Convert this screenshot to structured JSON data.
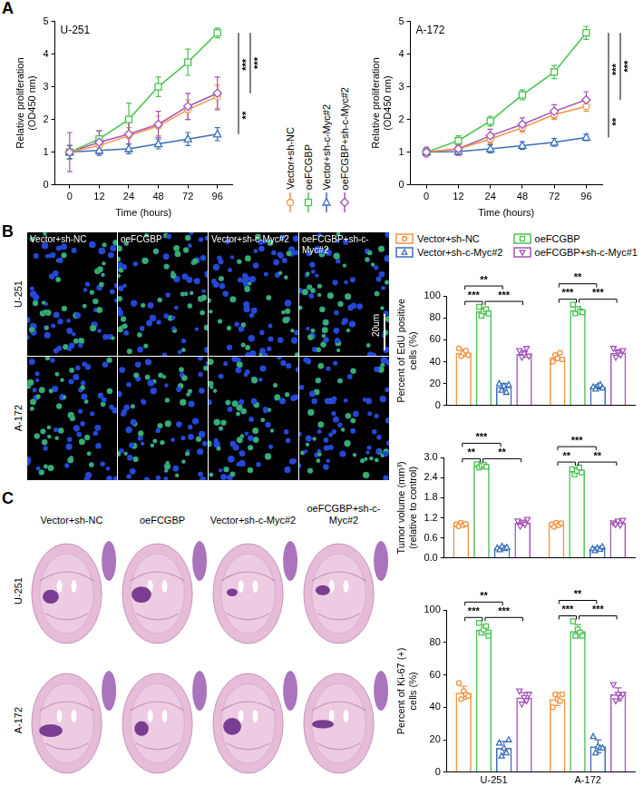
{
  "chart_data": [
    {
      "type": "line",
      "letter": "A",
      "title": "U-251",
      "x_label": "Time (hours)",
      "y_label": [
        "Relative proliferation",
        "(OD450 nm)"
      ],
      "categories": [
        "0",
        "12",
        "24",
        "48",
        "72",
        "96"
      ],
      "ylim": [
        0,
        5
      ],
      "yticks": [
        0,
        1,
        2,
        3,
        4,
        5
      ],
      "grid": false,
      "legend": "right",
      "series": [
        {
          "name": "Vector+sh-NC",
          "color": "#f5923e",
          "marker": "circle",
          "values": [
            1,
            1.2,
            1.5,
            1.8,
            2.3,
            2.7
          ],
          "errors": [
            0.2,
            0.25,
            0.25,
            0.3,
            0.3,
            0.35
          ]
        },
        {
          "name": "oeFCGBP",
          "color": "#49c24f",
          "marker": "square",
          "values": [
            1,
            1.4,
            2.0,
            3.0,
            3.75,
            4.65
          ],
          "errors": [
            0.2,
            0.25,
            0.5,
            0.3,
            0.4,
            0.15
          ]
        },
        {
          "name": "Vector+sh-c-Myc#2",
          "color": "#3a6fb7",
          "marker": "triangle",
          "values": [
            1,
            1.05,
            1.1,
            1.25,
            1.4,
            1.55
          ],
          "errors": [
            0.2,
            0.15,
            0.15,
            0.15,
            0.2,
            0.2
          ]
        },
        {
          "name": "oeFCGBP+sh-c-Myc#2",
          "color": "#a354b8",
          "marker": "diamond",
          "values": [
            1,
            1.3,
            1.55,
            1.85,
            2.4,
            2.8
          ],
          "errors": [
            0.6,
            0.35,
            0.45,
            0.4,
            0.4,
            0.5
          ]
        }
      ],
      "brackets": [
        {
          "between": [
            "oeFCGBP",
            "Vector+sh-NC"
          ],
          "label": "***"
        },
        {
          "between": [
            "oeFCGBP",
            "oeFCGBP+sh-c-Myc#2"
          ],
          "label": "***"
        },
        {
          "between": [
            "Vector+sh-NC",
            "Vector+sh-c-Myc#2"
          ],
          "label": "**"
        }
      ]
    },
    {
      "type": "line",
      "title": "A-172",
      "x_label": "Time (hours)",
      "y_label": [
        "Relative proliferation",
        "(OD450 nm)"
      ],
      "categories": [
        "0",
        "12",
        "24",
        "48",
        "72",
        "96"
      ],
      "ylim": [
        0,
        5
      ],
      "yticks": [
        0,
        1,
        2,
        3,
        4,
        5
      ],
      "grid": false,
      "series": [
        {
          "name": "Vector+sh-NC",
          "color": "#f5923e",
          "marker": "circle",
          "values": [
            1,
            1.1,
            1.4,
            1.75,
            2.15,
            2.4
          ],
          "errors": [
            0.1,
            0.12,
            0.15,
            0.15,
            0.15,
            0.15
          ]
        },
        {
          "name": "oeFCGBP",
          "color": "#49c24f",
          "marker": "square",
          "values": [
            1,
            1.35,
            1.95,
            2.75,
            3.45,
            4.65
          ],
          "errors": [
            0.1,
            0.15,
            0.15,
            0.15,
            0.2,
            0.2
          ]
        },
        {
          "name": "Vector+sh-c-Myc#2",
          "color": "#3a6fb7",
          "marker": "triangle",
          "values": [
            1,
            1.02,
            1.1,
            1.2,
            1.3,
            1.45
          ],
          "errors": [
            0.1,
            0.1,
            0.12,
            0.12,
            0.12,
            0.1
          ]
        },
        {
          "name": "oeFCGBP+sh-c-Myc#2",
          "color": "#a354b8",
          "marker": "diamond",
          "values": [
            1,
            1.1,
            1.5,
            1.85,
            2.25,
            2.6
          ],
          "errors": [
            0.15,
            0.2,
            0.2,
            0.2,
            0.2,
            0.25
          ]
        }
      ],
      "brackets": [
        {
          "between": [
            "oeFCGBP",
            "Vector+sh-NC"
          ],
          "label": "***"
        },
        {
          "between": [
            "oeFCGBP",
            "oeFCGBP+sh-c-Myc#2"
          ],
          "label": "***"
        },
        {
          "between": [
            "Vector+sh-NC",
            "Vector+sh-c-Myc#2"
          ],
          "label": "**"
        }
      ]
    },
    {
      "type": "bar",
      "y_label": [
        "Percent of EdU positive",
        "cells (%)"
      ],
      "categories": [
        null,
        null
      ],
      "ylim": [
        0,
        100
      ],
      "yticks": [
        0,
        20,
        40,
        60,
        80,
        100
      ],
      "grid": false,
      "legend": "top",
      "series": [
        {
          "name": "Vector+sh-NC",
          "color": "#f5923e",
          "marker": "circle",
          "values": [
            48,
            44
          ],
          "errors": [
            3,
            3
          ],
          "points": [
            [
              52,
              45,
              48,
              50,
              46
            ],
            [
              40,
              46,
              43,
              48,
              42
            ]
          ]
        },
        {
          "name": "oeFCGBP",
          "color": "#49c24f",
          "marker": "square",
          "values": [
            86,
            87
          ],
          "errors": [
            3,
            3
          ],
          "points": [
            [
              90,
              82,
              86,
              88,
              84
            ],
            [
              92,
              84,
              88,
              86,
              85
            ]
          ]
        },
        {
          "name": "Vector+sh-c-Myc#2",
          "color": "#3a6fb7",
          "marker": "triangle",
          "values": [
            17,
            17
          ],
          "errors": [
            3,
            2
          ],
          "points": [
            [
              20,
              14,
              18,
              12,
              19
            ],
            [
              17,
              15,
              18,
              19,
              16
            ]
          ]
        },
        {
          "name": "oeFCGBP+sh-c-Myc#1",
          "color": "#a354b8",
          "marker": "triangle_down",
          "values": [
            47,
            48
          ],
          "errors": [
            3,
            3
          ],
          "points": [
            [
              50,
              44,
              47,
              52,
              45
            ],
            [
              52,
              44,
              48,
              46,
              50
            ]
          ]
        }
      ],
      "brackets": [
        {
          "between": [
            "Vector+sh-NC",
            "oeFCGBP"
          ],
          "label": "***"
        },
        {
          "between": [
            "oeFCGBP",
            "oeFCGBP+sh-c-Myc#1"
          ],
          "label": "***"
        },
        {
          "between": [
            "Vector+sh-NC",
            "Vector+sh-c-Myc#2"
          ],
          "label": "**"
        }
      ]
    },
    {
      "type": "bar",
      "y_label": [
        "Tumor volume (mm³)",
        "(relative to control)"
      ],
      "categories": [
        null,
        null
      ],
      "ylim": [
        0,
        3
      ],
      "yticks": [
        {
          "value": 0,
          "label": "0.0"
        },
        0.6,
        1.2,
        1.8,
        2.4,
        {
          "value": 3,
          "label": "3.0"
        }
      ],
      "grid": false,
      "series": [
        {
          "name": "Vector+sh-NC",
          "color": "#f5923e",
          "marker": "circle",
          "values": [
            1.0,
            1.0
          ],
          "errors": [
            0.04,
            0.05
          ],
          "points": [
            [
              1.0,
              0.95,
              1.05,
              0.98,
              1.02
            ],
            [
              1.0,
              0.93,
              1.05,
              0.98,
              1.04
            ]
          ]
        },
        {
          "name": "oeFCGBP",
          "color": "#49c24f",
          "marker": "square",
          "values": [
            2.75,
            2.6
          ],
          "errors": [
            0.04,
            0.08
          ],
          "points": [
            [
              2.8,
              2.7,
              2.75,
              2.78,
              2.72
            ],
            [
              2.65,
              2.5,
              2.6,
              2.7,
              2.55
            ]
          ]
        },
        {
          "name": "Vector+sh-c-Myc#2",
          "color": "#3a6fb7",
          "marker": "triangle",
          "values": [
            0.3,
            0.28
          ],
          "errors": [
            0.04,
            0.05
          ],
          "points": [
            [
              0.3,
              0.25,
              0.35,
              0.28,
              0.32
            ],
            [
              0.28,
              0.22,
              0.3,
              0.26,
              0.34
            ]
          ]
        },
        {
          "name": "oeFCGBP+sh-c-Myc#1",
          "color": "#a354b8",
          "marker": "triangle_down",
          "values": [
            1.05,
            1.05
          ],
          "errors": [
            0.08,
            0.06
          ],
          "points": [
            [
              1.1,
              0.95,
              1.05,
              1.0,
              1.15
            ],
            [
              1.05,
              1.0,
              1.1,
              0.98,
              1.12
            ]
          ]
        }
      ],
      "brackets": [
        {
          "between": [
            "Vector+sh-NC",
            "oeFCGBP"
          ],
          "label": "**"
        },
        {
          "between": [
            "oeFCGBP",
            "oeFCGBP+sh-c-Myc#1"
          ],
          "label": "**"
        },
        {
          "between": [
            "Vector+sh-NC",
            "Vector+sh-c-Myc#2"
          ],
          "label": "***"
        }
      ]
    },
    {
      "type": "bar",
      "y_label": [
        "Percent of Ki-67 (+)",
        "cells (%)"
      ],
      "categories": [
        "U-251",
        "A-172"
      ],
      "ylim": [
        0,
        100
      ],
      "yticks": [
        0,
        20,
        40,
        60,
        80,
        100
      ],
      "grid": false,
      "series": [
        {
          "name": "Vector+sh-NC",
          "color": "#f5923e",
          "marker": "circle",
          "values": [
            49,
            45
          ],
          "errors": [
            4,
            4
          ],
          "points": [
            [
              55,
              45,
              50,
              48,
              47
            ],
            [
              40,
              48,
              45,
              44,
              48
            ]
          ]
        },
        {
          "name": "oeFCGBP",
          "color": "#49c24f",
          "marker": "square",
          "values": [
            88,
            87
          ],
          "errors": [
            3,
            4
          ],
          "points": [
            [
              92,
              86,
              88,
              90,
              84
            ],
            [
              93,
              84,
              88,
              86,
              84
            ]
          ]
        },
        {
          "name": "Vector+sh-c-Myc#2",
          "color": "#3a6fb7",
          "marker": "triangle",
          "values": [
            15,
            16
          ],
          "errors": [
            4,
            4
          ],
          "points": [
            [
              18,
              10,
              15,
              12,
              20
            ],
            [
              22,
              12,
              16,
              15,
              15
            ]
          ]
        },
        {
          "name": "oeFCGBP+sh-c-Myc#1",
          "color": "#a354b8",
          "marker": "triangle_down",
          "values": [
            46,
            48
          ],
          "errors": [
            3,
            4
          ],
          "points": [
            [
              50,
              42,
              46,
              44,
              48
            ],
            [
              54,
              44,
              48,
              46,
              48
            ]
          ]
        }
      ],
      "brackets": [
        {
          "between": [
            "Vector+sh-NC",
            "oeFCGBP"
          ],
          "label": "***"
        },
        {
          "between": [
            "oeFCGBP",
            "oeFCGBP+sh-c-Myc#1"
          ],
          "label": "***"
        },
        {
          "between": [
            "Vector+sh-NC",
            "Vector+sh-c-Myc#2"
          ],
          "label": "**"
        }
      ]
    }
  ],
  "images": [
    {
      "letter": "B",
      "type": "fluorescence",
      "columns": [
        "Vector+sh-NC",
        "oeFCGBP",
        "Vector+sh-c-Myc#2",
        "oeFCGBP+sh-c-Myc#2"
      ],
      "rows": [
        "U-251",
        "A-172"
      ],
      "scale_bar": "20um"
    },
    {
      "letter": "C",
      "type": "histology",
      "columns": [
        "Vector+sh-NC",
        "oeFCGBP",
        "Vector+sh-c-Myc#2",
        "oeFCGBP+sh-c-Myc#2"
      ],
      "rows": [
        "U-251",
        "A-172"
      ]
    }
  ]
}
